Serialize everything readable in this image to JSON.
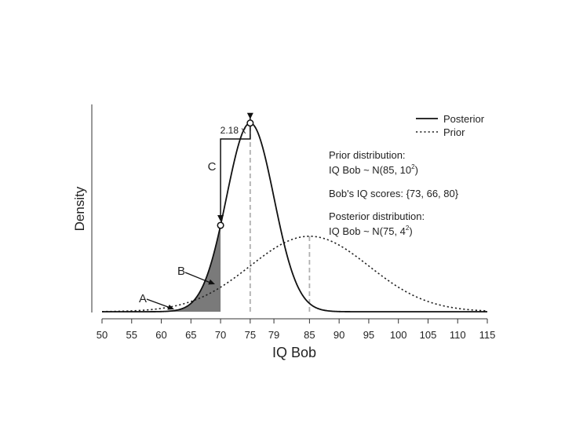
{
  "chart_data": {
    "type": "line",
    "xlabel": "IQ Bob",
    "ylabel": "Density",
    "xlim": [
      50,
      115
    ],
    "ylim": [
      0,
      0.11
    ],
    "x_ticks": [
      "50",
      "55",
      "60",
      "65",
      "70",
      "75",
      "79",
      "85",
      "90",
      "95",
      "100",
      "105",
      "110",
      "115"
    ],
    "series": [
      {
        "name": "Posterior",
        "distribution": "normal",
        "mean": 75,
        "sd": 4,
        "line_style": "solid"
      },
      {
        "name": "Prior",
        "distribution": "normal",
        "mean": 85,
        "sd": 10,
        "line_style": "dotted"
      }
    ],
    "shaded_region": {
      "series": "Posterior",
      "x_from": 50,
      "x_to": 70,
      "color": "#7a7a7a"
    },
    "reference_lines": [
      {
        "x": 75,
        "style": "dashed",
        "color": "#b0b0b0"
      },
      {
        "x": 85,
        "style": "dashed",
        "color": "#b0b0b0"
      }
    ],
    "highlight_points": [
      {
        "x": 70,
        "series": "Posterior"
      },
      {
        "x": 75,
        "series": "Posterior"
      }
    ],
    "annotations": {
      "ratio_label": "2.18 x",
      "label_c": "C",
      "label_b": "B",
      "label_a": "A",
      "prior_title": "Prior distribution:",
      "prior_formula_main": "IQ Bob ~ N(85, 10",
      "prior_formula_exp": "2",
      "prior_formula_end": ")",
      "scores_text": "Bob's IQ scores: {73, 66, 80}",
      "posterior_title": "Posterior distribution:",
      "posterior_formula_main": "IQ Bob ~ N(75, 4",
      "posterior_formula_exp": "2",
      "posterior_formula_end": ")"
    },
    "legend": {
      "placement": "top-right",
      "entries": [
        {
          "label": "Posterior",
          "line_style": "solid"
        },
        {
          "label": "Prior",
          "line_style": "dotted"
        }
      ]
    }
  }
}
